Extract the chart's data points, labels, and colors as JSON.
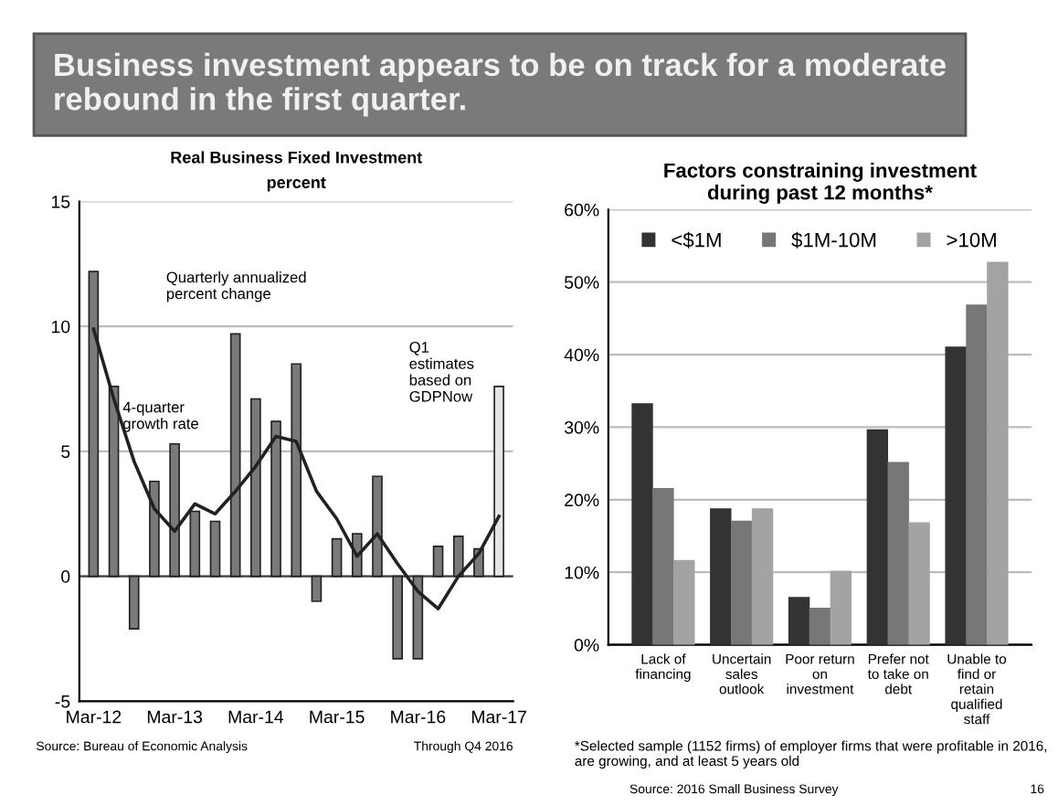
{
  "chart_data": [
    {
      "type": "other",
      "title": "Business investment appears to be on track for a moderate rebound in the first quarter."
    },
    {
      "type": "bar",
      "title": "Real Business Fixed Investment",
      "subtitle": "percent",
      "categories": [
        "Mar-12",
        null,
        null,
        null,
        "Mar-13",
        null,
        null,
        null,
        "Mar-14",
        null,
        null,
        null,
        "Mar-15",
        null,
        null,
        null,
        "Mar-16",
        null,
        null,
        null,
        "Mar-17"
      ],
      "series": [
        {
          "type": "bar",
          "color": "#7a7a7a",
          "colors": [
            "#7a7a7a",
            "#7a7a7a",
            "#7a7a7a",
            "#7a7a7a",
            "#7a7a7a",
            "#7a7a7a",
            "#7a7a7a",
            "#7a7a7a",
            "#7a7a7a",
            "#7a7a7a",
            "#7a7a7a",
            "#7a7a7a",
            "#7a7a7a",
            "#7a7a7a",
            "#7a7a7a",
            "#7a7a7a",
            "#7a7a7a",
            "#7a7a7a",
            "#7a7a7a",
            "#7a7a7a",
            "#e6e6e6"
          ],
          "values": [
            12.2,
            7.6,
            -2.1,
            3.8,
            5.3,
            2.6,
            2.2,
            9.7,
            7.1,
            6.2,
            8.5,
            -1.0,
            1.5,
            1.7,
            4.0,
            -3.3,
            -3.3,
            1.2,
            1.6,
            1.1,
            7.6
          ]
        },
        {
          "type": "line",
          "color": "#222222",
          "values": [
            9.9,
            7.1,
            4.6,
            2.7,
            1.8,
            2.9,
            2.5,
            3.4,
            4.4,
            5.6,
            5.4,
            3.4,
            2.3,
            0.8,
            1.7,
            0.5,
            -0.6,
            -1.3,
            0.0,
            0.9,
            2.4
          ]
        }
      ],
      "ylim": [
        -5,
        15
      ],
      "yticks": [
        -5,
        0,
        5,
        10,
        15
      ],
      "grid": "y",
      "annotations": [
        "Quarterly annualized percent change",
        "4-quarter growth rate",
        "Q1 estimates based on GDPNow",
        "Source: Bureau of Economic Analysis",
        "Through Q4 2016"
      ]
    },
    {
      "type": "bar",
      "title": "Factors constraining investment during past 12 months*",
      "categories": [
        "Lack of financing",
        "Uncertain sales outlook",
        "Poor return on investment",
        "Prefer not to take on debt",
        "Unable to find or retain qualified staff"
      ],
      "series": [
        {
          "name": "<$1M",
          "color": "#333333",
          "values": [
            33.2,
            18.7,
            6.5,
            29.6,
            41.0
          ]
        },
        {
          "name": "$1M-10M",
          "color": "#777777",
          "values": [
            21.5,
            17.0,
            5.0,
            25.1,
            46.8
          ]
        },
        {
          "name": ">10M",
          "color": "#a3a3a3",
          "values": [
            11.6,
            18.7,
            10.1,
            16.8,
            52.7
          ]
        }
      ],
      "ylim": [
        0,
        60
      ],
      "yticks": [
        {
          "value": 0,
          "label": "0%"
        },
        {
          "value": 10,
          "label": "10%"
        },
        {
          "value": 20,
          "label": "20%"
        },
        {
          "value": 30,
          "label": "30%"
        },
        {
          "value": 40,
          "label": "40%"
        },
        {
          "value": 50,
          "label": "50%"
        },
        {
          "value": 60,
          "label": "60%"
        }
      ],
      "grid": "y",
      "legend": "top",
      "annotations": [
        "*Selected sample (1152 firms) of employer firms that were profitable in 2016, are growing, and at least 5 years old",
        "Source: 2016 Small Business Survey",
        "16"
      ]
    }
  ]
}
